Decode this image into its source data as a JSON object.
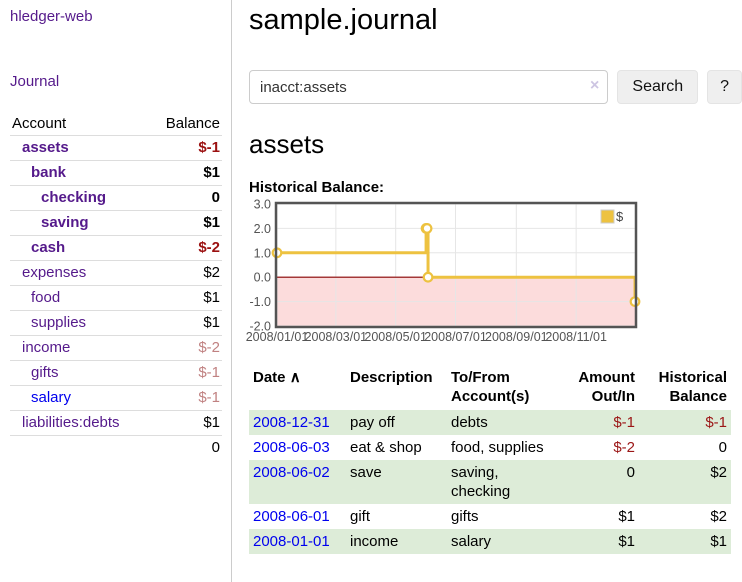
{
  "app": {
    "brand": "hledger-web"
  },
  "nav": {
    "journal": "Journal"
  },
  "icons": {
    "sort_ascending": "∧",
    "clear": "×"
  },
  "sidebar": {
    "accounts_table": {
      "col_account": "Account",
      "col_balance": "Balance",
      "rows": [
        {
          "account": "assets",
          "balance": "$-1"
        },
        {
          "account": "bank",
          "balance": "$1"
        },
        {
          "account": "checking",
          "balance": "0"
        },
        {
          "account": "saving",
          "balance": "$1"
        },
        {
          "account": "cash",
          "balance": "$-2"
        },
        {
          "account": "expenses",
          "balance": "$2"
        },
        {
          "account": "food",
          "balance": "$1"
        },
        {
          "account": "supplies",
          "balance": "$1"
        },
        {
          "account": "income",
          "balance": "$-2"
        },
        {
          "account": "gifts",
          "balance": "$-1"
        },
        {
          "account": "salary",
          "balance": "$-1"
        },
        {
          "account": "liabilities:debts",
          "balance": "$1"
        }
      ],
      "total": "0"
    }
  },
  "main": {
    "title": "sample.journal",
    "search": {
      "value": "inacct:assets",
      "button_label": "Search",
      "help_label": "?"
    },
    "account_heading": "assets",
    "section_label": "Historical Balance:"
  },
  "chart_data": {
    "type": "line",
    "title": "Historical Balance",
    "step": true,
    "series": [
      {
        "name": "$",
        "color": "#edc240",
        "points": [
          [
            "2008-01-01",
            1
          ],
          [
            "2008-06-01",
            2
          ],
          [
            "2008-06-02",
            2
          ],
          [
            "2008-06-03",
            0
          ],
          [
            "2008-12-31",
            -1
          ]
        ]
      }
    ],
    "xlim": [
      "2008-01-01",
      "2008-12-31"
    ],
    "ylim": [
      -2,
      3
    ],
    "x_tick_labels": [
      "2008/01/01",
      "2008/03/01",
      "2008/05/01",
      "2008/07/01",
      "2008/09/01",
      "2008/11/01"
    ],
    "y_tick_labels": [
      "3.0",
      "2.0",
      "1.0",
      "0.0",
      "-1.0",
      "-2.0"
    ],
    "grid": true,
    "legend_position": "top-right",
    "legend_label": "$",
    "negative_region": true,
    "colors": {
      "grid": "#e6e6e6",
      "border": "#545454",
      "tick_text": "#545454",
      "negative_fill": "#fcdcdc",
      "zero_line": "#8b0000",
      "marker_fill": "#ffffff",
      "legend_box_border": "#cccccc"
    }
  },
  "register": {
    "headers": {
      "date": "Date",
      "description": "Description",
      "accounts": "To/From Account(s)",
      "amount": "Amount Out/In",
      "balance": "Historical Balance"
    },
    "rows": [
      {
        "date": "2008-12-31",
        "description": "pay off",
        "accounts": "debts",
        "amount": "$-1",
        "balance": "$-1"
      },
      {
        "date": "2008-06-03",
        "description": "eat & shop",
        "accounts": "food, supplies",
        "amount": "$-2",
        "balance": "0"
      },
      {
        "date": "2008-06-02",
        "description": "save",
        "accounts": "saving, checking",
        "amount": "0",
        "balance": "$2"
      },
      {
        "date": "2008-06-01",
        "description": "gift",
        "accounts": "gifts",
        "amount": "$1",
        "balance": "$2"
      },
      {
        "date": "2008-01-01",
        "description": "income",
        "accounts": "salary",
        "amount": "$1",
        "balance": "$1"
      }
    ]
  }
}
